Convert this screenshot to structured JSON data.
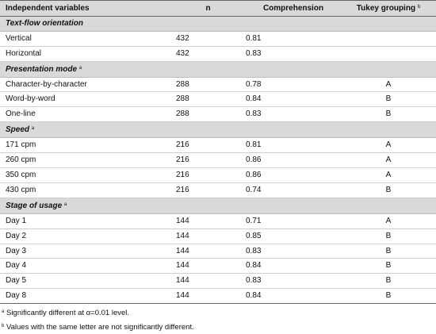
{
  "header": {
    "col1": "Independent variables",
    "col2": "n",
    "col3": "Comprehension",
    "col4": "Tukey grouping",
    "col4_sup": "b"
  },
  "groups": [
    {
      "label": "Text-flow orientation",
      "sup": "",
      "rows": [
        {
          "name": "Vertical",
          "n": "432",
          "comp": "0.81",
          "tukey": ""
        },
        {
          "name": "Horizontal",
          "n": "432",
          "comp": "0.83",
          "tukey": ""
        }
      ]
    },
    {
      "label": "Presentation mode",
      "sup": "a",
      "rows": [
        {
          "name": "Character-by-character",
          "n": "288",
          "comp": "0.78",
          "tukey": "A"
        },
        {
          "name": "Word-by-word",
          "n": "288",
          "comp": "0.84",
          "tukey": "B"
        },
        {
          "name": "One-line",
          "n": "288",
          "comp": "0.83",
          "tukey": "B"
        }
      ]
    },
    {
      "label": "Speed",
      "sup": "a",
      "rows": [
        {
          "name": "171 cpm",
          "n": "216",
          "comp": "0.81",
          "tukey": "A"
        },
        {
          "name": "260 cpm",
          "n": "216",
          "comp": "0.86",
          "tukey": "A"
        },
        {
          "name": "350 cpm",
          "n": "216",
          "comp": "0.86",
          "tukey": "A"
        },
        {
          "name": "430 cpm",
          "n": "216",
          "comp": "0.74",
          "tukey": "B"
        }
      ]
    },
    {
      "label": "Stage of usage",
      "sup": "a",
      "rows": [
        {
          "name": "Day 1",
          "n": "144",
          "comp": "0.71",
          "tukey": "A"
        },
        {
          "name": "Day 2",
          "n": "144",
          "comp": "0.85",
          "tukey": "B"
        },
        {
          "name": "Day 3",
          "n": "144",
          "comp": "0.83",
          "tukey": "B"
        },
        {
          "name": "Day 4",
          "n": "144",
          "comp": "0.84",
          "tukey": "B"
        },
        {
          "name": "Day 5",
          "n": "144",
          "comp": "0.83",
          "tukey": "B"
        },
        {
          "name": "Day 8",
          "n": "144",
          "comp": "0.84",
          "tukey": "B"
        }
      ]
    }
  ],
  "footnotes": [
    {
      "mark": "a",
      "text": "Significantly different at α=0.01 level."
    },
    {
      "mark": "b",
      "text": "Values with the same letter are not significantly different."
    }
  ]
}
